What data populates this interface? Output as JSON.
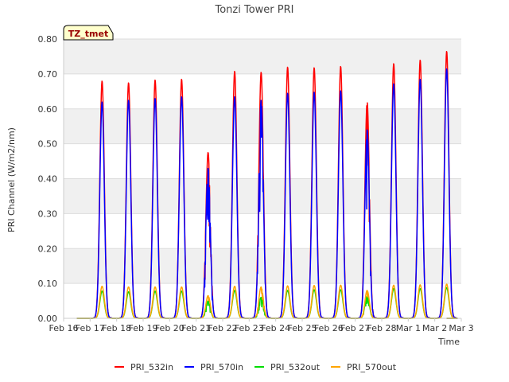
{
  "chart_data": {
    "type": "line",
    "title": "Tonzi Tower PRI",
    "xlabel": "Time",
    "ylabel": "PRI Channel (W/m2/nm)",
    "xlim": [
      0,
      15
    ],
    "ylim": [
      0,
      0.8
    ],
    "yticks": [
      0.0,
      0.1,
      0.2,
      0.3,
      0.4,
      0.5,
      0.6,
      0.7,
      0.8
    ],
    "ytick_labels": [
      "0.00",
      "0.10",
      "0.20",
      "0.30",
      "0.40",
      "0.50",
      "0.60",
      "0.70",
      "0.80"
    ],
    "xticks": [
      0,
      1,
      2,
      3,
      4,
      5,
      6,
      7,
      8,
      9,
      10,
      11,
      12,
      13,
      14,
      15
    ],
    "xtick_labels": [
      "Feb 16",
      "Feb 17",
      "Feb 18",
      "Feb 19",
      "Feb 20",
      "Feb 21",
      "Feb 22",
      "Feb 23",
      "Feb 24",
      "Feb 25",
      "Feb 26",
      "Feb 27",
      "Feb 28",
      "Mar 1",
      "Mar 2",
      "Mar 3"
    ],
    "legend_position": "bottom",
    "annotation": "TZ_tmet",
    "days": [
      "Feb 17",
      "Feb 18",
      "Feb 19",
      "Feb 20",
      "Feb 21",
      "Feb 22",
      "Feb 23",
      "Feb 24",
      "Feb 25",
      "Feb 26",
      "Feb 27",
      "Feb 28",
      "Mar 1",
      "Mar 2"
    ],
    "day_offsets": [
      1,
      2,
      3,
      4,
      5,
      6,
      7,
      8,
      9,
      10,
      11,
      12,
      13,
      14
    ],
    "series": [
      {
        "name": "PRI_532in",
        "color": "#ff0000",
        "daily_peaks": [
          0.68,
          0.675,
          0.683,
          0.685,
          0.475,
          0.708,
          0.705,
          0.72,
          0.718,
          0.722,
          0.62,
          0.73,
          0.74,
          0.765
        ]
      },
      {
        "name": "PRI_570in",
        "color": "#0000ff",
        "daily_peaks": [
          0.62,
          0.625,
          0.63,
          0.635,
          0.43,
          0.635,
          0.625,
          0.645,
          0.648,
          0.652,
          0.54,
          0.672,
          0.685,
          0.715
        ]
      },
      {
        "name": "PRI_532out",
        "color": "#00dd00",
        "daily_peaks": [
          0.078,
          0.076,
          0.078,
          0.078,
          0.05,
          0.08,
          0.06,
          0.08,
          0.082,
          0.082,
          0.065,
          0.085,
          0.085,
          0.088
        ]
      },
      {
        "name": "PRI_570out",
        "color": "#ffa500",
        "daily_peaks": [
          0.092,
          0.09,
          0.09,
          0.09,
          0.065,
          0.092,
          0.09,
          0.093,
          0.094,
          0.095,
          0.08,
          0.095,
          0.096,
          0.098
        ]
      }
    ]
  }
}
